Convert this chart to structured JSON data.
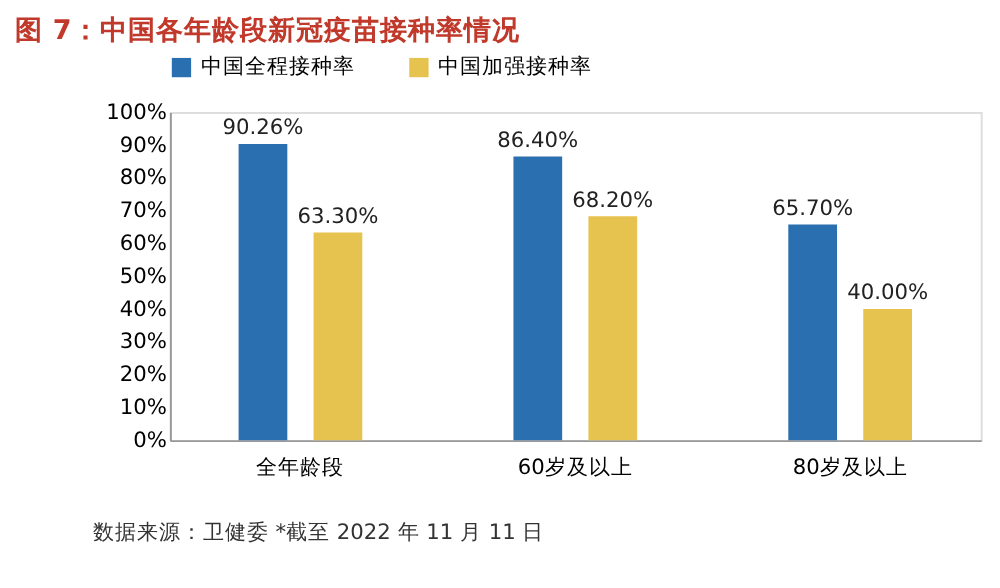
{
  "chart_data": {
    "type": "bar",
    "title": "图 7：中国各年龄段新冠疫苗接种率情况",
    "categories": [
      "全年龄段",
      "60岁及以上",
      "80岁及以上"
    ],
    "series": [
      {
        "name": "中国全程接种率",
        "color": "#2a6fb0",
        "values": [
          90.26,
          86.4,
          65.7
        ],
        "value_labels": [
          "90.26%",
          "86.40%",
          "65.70%"
        ]
      },
      {
        "name": "中国加强接种率",
        "color": "#e6c24e",
        "values": [
          63.3,
          68.2,
          40.0
        ],
        "value_labels": [
          "63.30%",
          "68.20%",
          "40.00%"
        ]
      }
    ],
    "ylim": [
      0,
      100
    ],
    "yticks": [
      {
        "value": 0,
        "label": "0%"
      },
      {
        "value": 10,
        "label": "10%"
      },
      {
        "value": 20,
        "label": "20%"
      },
      {
        "value": 30,
        "label": "30%"
      },
      {
        "value": 40,
        "label": "40%"
      },
      {
        "value": 50,
        "label": "50%"
      },
      {
        "value": 60,
        "label": "60%"
      },
      {
        "value": 70,
        "label": "70%"
      },
      {
        "value": 80,
        "label": "80%"
      },
      {
        "value": 90,
        "label": "90%"
      },
      {
        "value": 100,
        "label": "100%"
      }
    ],
    "grid": false,
    "legend": "top",
    "annotations": [
      "数据来源：卫健委 *截至 2022 年 11 月 11 日"
    ]
  }
}
